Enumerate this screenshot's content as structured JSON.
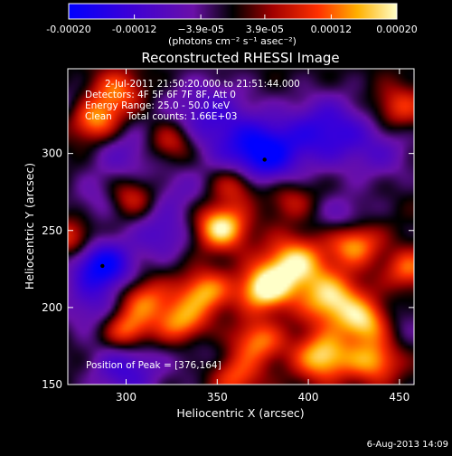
{
  "chart_data": {
    "type": "heatmap",
    "title": "Reconstructed RHESSI Image",
    "xlabel": "Heliocentric X (arcsec)",
    "ylabel": "Heliocentric Y (arcsec)",
    "xlim": [
      268,
      458
    ],
    "ylim": [
      150,
      355
    ],
    "x_ticks": [
      300,
      350,
      400,
      450
    ],
    "y_ticks": [
      150,
      200,
      250,
      300
    ],
    "colorbar": {
      "min": -0.0002,
      "max": 0.0002,
      "tick_values": [
        -0.0002,
        -0.00012,
        -3.9e-05,
        3.9e-05,
        0.00012,
        0.0002
      ],
      "tick_labels": [
        "-0.00020",
        "-0.00012",
        "−3.9e-05",
        "3.9e-05",
        "0.00012",
        "0.00020"
      ],
      "unit_label": "(photons cm⁻² s⁻¹ asec⁻²)"
    },
    "annotations": [
      "2-Jul-2011 21:50:20.000 to 21:51:44.000",
      "Detectors: 4F 5F 6F 7F 8F, Att 0",
      "Energy Range: 25.0 - 50.0 keV",
      "Clean     Total counts: 1.66E+03"
    ],
    "peak_label": "Position of Peak = [376,164]",
    "minima_markers": [
      {
        "x": 376,
        "y": 296
      },
      {
        "x": 287,
        "y": 227
      }
    ],
    "blobs": [
      {
        "x": 375,
        "y": 300,
        "v": -0.0002,
        "s": 14
      },
      {
        "x": 345,
        "y": 322,
        "v": -0.00012,
        "s": 18
      },
      {
        "x": 410,
        "y": 315,
        "v": -0.00014,
        "s": 16
      },
      {
        "x": 287,
        "y": 227,
        "v": -0.0002,
        "s": 12
      },
      {
        "x": 300,
        "y": 300,
        "v": -8e-05,
        "s": 14
      },
      {
        "x": 320,
        "y": 248,
        "v": -0.0001,
        "s": 12
      },
      {
        "x": 285,
        "y": 270,
        "v": -6e-05,
        "s": 11
      },
      {
        "x": 300,
        "y": 160,
        "v": -0.00012,
        "s": 14
      },
      {
        "x": 280,
        "y": 200,
        "v": -8e-05,
        "s": 12
      },
      {
        "x": 340,
        "y": 170,
        "v": -4e-05,
        "s": 12
      },
      {
        "x": 420,
        "y": 258,
        "v": -8e-05,
        "s": 11
      },
      {
        "x": 440,
        "y": 300,
        "v": -7e-05,
        "s": 14
      },
      {
        "x": 330,
        "y": 275,
        "v": -6e-05,
        "s": 11
      },
      {
        "x": 270,
        "y": 330,
        "v": -6e-05,
        "s": 10
      },
      {
        "x": 450,
        "y": 190,
        "v": -5e-05,
        "s": 11
      },
      {
        "x": 352,
        "y": 252,
        "v": 0.0002,
        "s": 10
      },
      {
        "x": 392,
        "y": 228,
        "v": 0.00019,
        "s": 12
      },
      {
        "x": 376,
        "y": 212,
        "v": 0.0002,
        "s": 10
      },
      {
        "x": 413,
        "y": 205,
        "v": 0.00018,
        "s": 12
      },
      {
        "x": 425,
        "y": 242,
        "v": 0.00016,
        "s": 10
      },
      {
        "x": 432,
        "y": 190,
        "v": 0.00016,
        "s": 10
      },
      {
        "x": 408,
        "y": 168,
        "v": 0.00018,
        "s": 11
      },
      {
        "x": 436,
        "y": 165,
        "v": 0.00014,
        "s": 10
      },
      {
        "x": 372,
        "y": 178,
        "v": 0.00013,
        "s": 10
      },
      {
        "x": 343,
        "y": 210,
        "v": 0.00015,
        "s": 10
      },
      {
        "x": 330,
        "y": 190,
        "v": 0.00014,
        "s": 10
      },
      {
        "x": 310,
        "y": 205,
        "v": 0.00012,
        "s": 10
      },
      {
        "x": 300,
        "y": 185,
        "v": 0.00014,
        "s": 9
      },
      {
        "x": 282,
        "y": 322,
        "v": 0.00016,
        "s": 10
      },
      {
        "x": 295,
        "y": 340,
        "v": 0.00012,
        "s": 10
      },
      {
        "x": 325,
        "y": 308,
        "v": 0.00012,
        "s": 10
      },
      {
        "x": 360,
        "y": 280,
        "v": 0.0001,
        "s": 9
      },
      {
        "x": 302,
        "y": 272,
        "v": 0.0001,
        "s": 9
      },
      {
        "x": 270,
        "y": 245,
        "v": 0.0001,
        "s": 9
      },
      {
        "x": 450,
        "y": 330,
        "v": 0.0001,
        "s": 10
      },
      {
        "x": 455,
        "y": 225,
        "v": 0.00012,
        "s": 9
      },
      {
        "x": 360,
        "y": 155,
        "v": 0.00011,
        "s": 10
      },
      {
        "x": 390,
        "y": 270,
        "v": 7e-05,
        "s": 9
      }
    ]
  },
  "footer": {
    "date": "6-Aug-2013 14:09"
  }
}
